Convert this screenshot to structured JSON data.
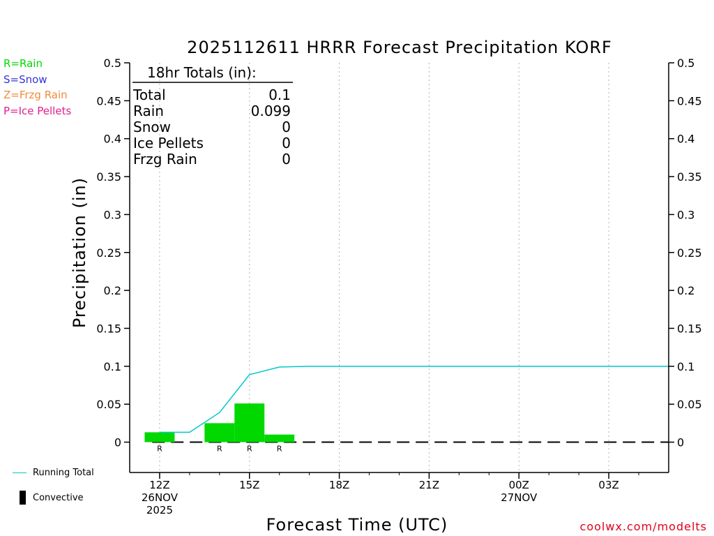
{
  "chart_data": {
    "type": "bar+line",
    "title": "2025112611 HRRR Forecast Precipitation KORF",
    "xlabel": "Forecast Time (UTC)",
    "ylabel": "Precipitation (in)",
    "ylim": [
      -0.04,
      0.5
    ],
    "yticks": [
      0,
      0.05,
      0.1,
      0.15,
      0.2,
      0.25,
      0.3,
      0.35,
      0.4,
      0.45,
      0.5
    ],
    "ytick_labels": [
      "0",
      "0.05",
      "0.1",
      "0.15",
      "0.2",
      "0.25",
      "0.3",
      "0.35",
      "0.4",
      "0.45",
      "0.5"
    ],
    "xlim": [
      -1,
      17
    ],
    "xticks": [
      {
        "hour": 0,
        "lines": [
          "12Z",
          "26NOV",
          "2025"
        ]
      },
      {
        "hour": 3,
        "lines": [
          "15Z"
        ]
      },
      {
        "hour": 6,
        "lines": [
          "18Z"
        ]
      },
      {
        "hour": 9,
        "lines": [
          "21Z"
        ]
      },
      {
        "hour": 12,
        "lines": [
          "00Z",
          "27NOV"
        ]
      },
      {
        "hour": 15,
        "lines": [
          "03Z"
        ]
      }
    ],
    "hourly_bars": [
      {
        "hour": 0,
        "value": 0.013,
        "type": "R"
      },
      {
        "hour": 2,
        "value": 0.025,
        "type": "R"
      },
      {
        "hour": 3,
        "value": 0.051,
        "type": "R"
      },
      {
        "hour": 4,
        "value": 0.01,
        "type": "R"
      }
    ],
    "running_total": {
      "name": "Running Total",
      "x": [
        0,
        1,
        2,
        3,
        4,
        5,
        6,
        7,
        8,
        9,
        10,
        11,
        12,
        13,
        14,
        15,
        16,
        17
      ],
      "y": [
        0.013,
        0.013,
        0.039,
        0.089,
        0.099,
        0.1,
        0.1,
        0.1,
        0.1,
        0.1,
        0.1,
        0.1,
        0.1,
        0.1,
        0.1,
        0.1,
        0.1,
        0.1
      ]
    },
    "convective": [],
    "totals_box": {
      "header": "18hr Totals (in):",
      "rows": [
        {
          "label": "Total",
          "value": "0.1"
        },
        {
          "label": "Rain",
          "value": "0.099"
        },
        {
          "label": "Snow",
          "value": "0"
        },
        {
          "label": "Ice Pellets",
          "value": "0"
        },
        {
          "label": "Frzg Rain",
          "value": "0"
        }
      ]
    },
    "colors": {
      "rain": "#00d800",
      "snow": "#3333dd",
      "frzg": "#f08c3c",
      "ice": "#e0208c",
      "running_total": "#00c8c8",
      "credit": "#e0001a"
    }
  },
  "legend": {
    "rain": "R=Rain",
    "snow": "S=Snow",
    "frzg": "Z=Frzg Rain",
    "ice": "P=Ice Pellets"
  },
  "bottom_legend": {
    "running_total": "Running Total",
    "convective": "Convective"
  },
  "credit": "coolwx.com/modelts"
}
